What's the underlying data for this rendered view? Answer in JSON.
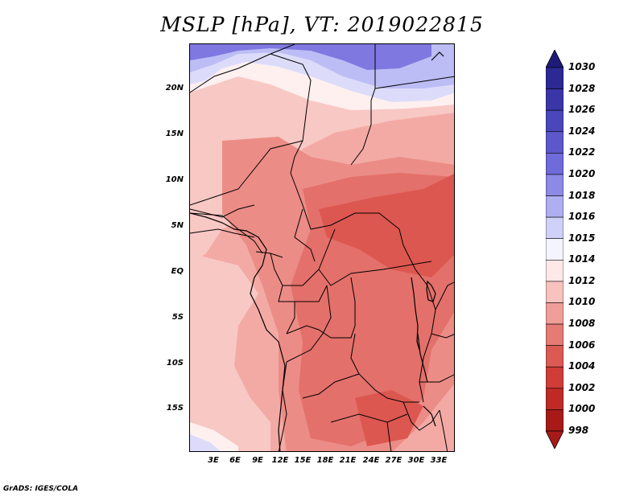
{
  "title": "MSLP [hPa], VT: 2019022815",
  "map": {
    "lat_labels": [
      "20N",
      "15N",
      "10N",
      "5N",
      "EQ",
      "5S",
      "10S",
      "15S"
    ],
    "lon_labels": [
      "3E",
      "6E",
      "9E",
      "12E",
      "15E",
      "18E",
      "21E",
      "24E",
      "27E",
      "30E",
      "33E"
    ],
    "colors": {
      "level_1030": "#2a2a90",
      "level_1020": "#7e78e0",
      "level_1016": "#bcbdf5",
      "level_1015": "#dcdcfa",
      "level_1014": "#fff0f0",
      "level_1012": "#f8c8c4",
      "level_1010": "#f3aaa5",
      "level_1008": "#ec8c86",
      "level_1006": "#e3706a",
      "level_1004": "#dc5750",
      "boundaries": "#000000"
    }
  },
  "colorbar": {
    "labels": [
      "1030",
      "1028",
      "1026",
      "1024",
      "1022",
      "1020",
      "1018",
      "1016",
      "1015",
      "1014",
      "1012",
      "1010",
      "1008",
      "1006",
      "1004",
      "1002",
      "1000",
      "998"
    ],
    "colors": [
      "#1e1a7a",
      "#2c2894",
      "#3a36a8",
      "#4a46bc",
      "#5c58cc",
      "#6f6bda",
      "#8c8ae6",
      "#aeaef0",
      "#d0d0f8",
      "#f4f4ff",
      "#ffe8e8",
      "#f8c2be",
      "#f09e98",
      "#e67a74",
      "#dc5a54",
      "#d03c38",
      "#c02a26",
      "#a81a18"
    ]
  },
  "credit": "GrADS: IGES/COLA"
}
